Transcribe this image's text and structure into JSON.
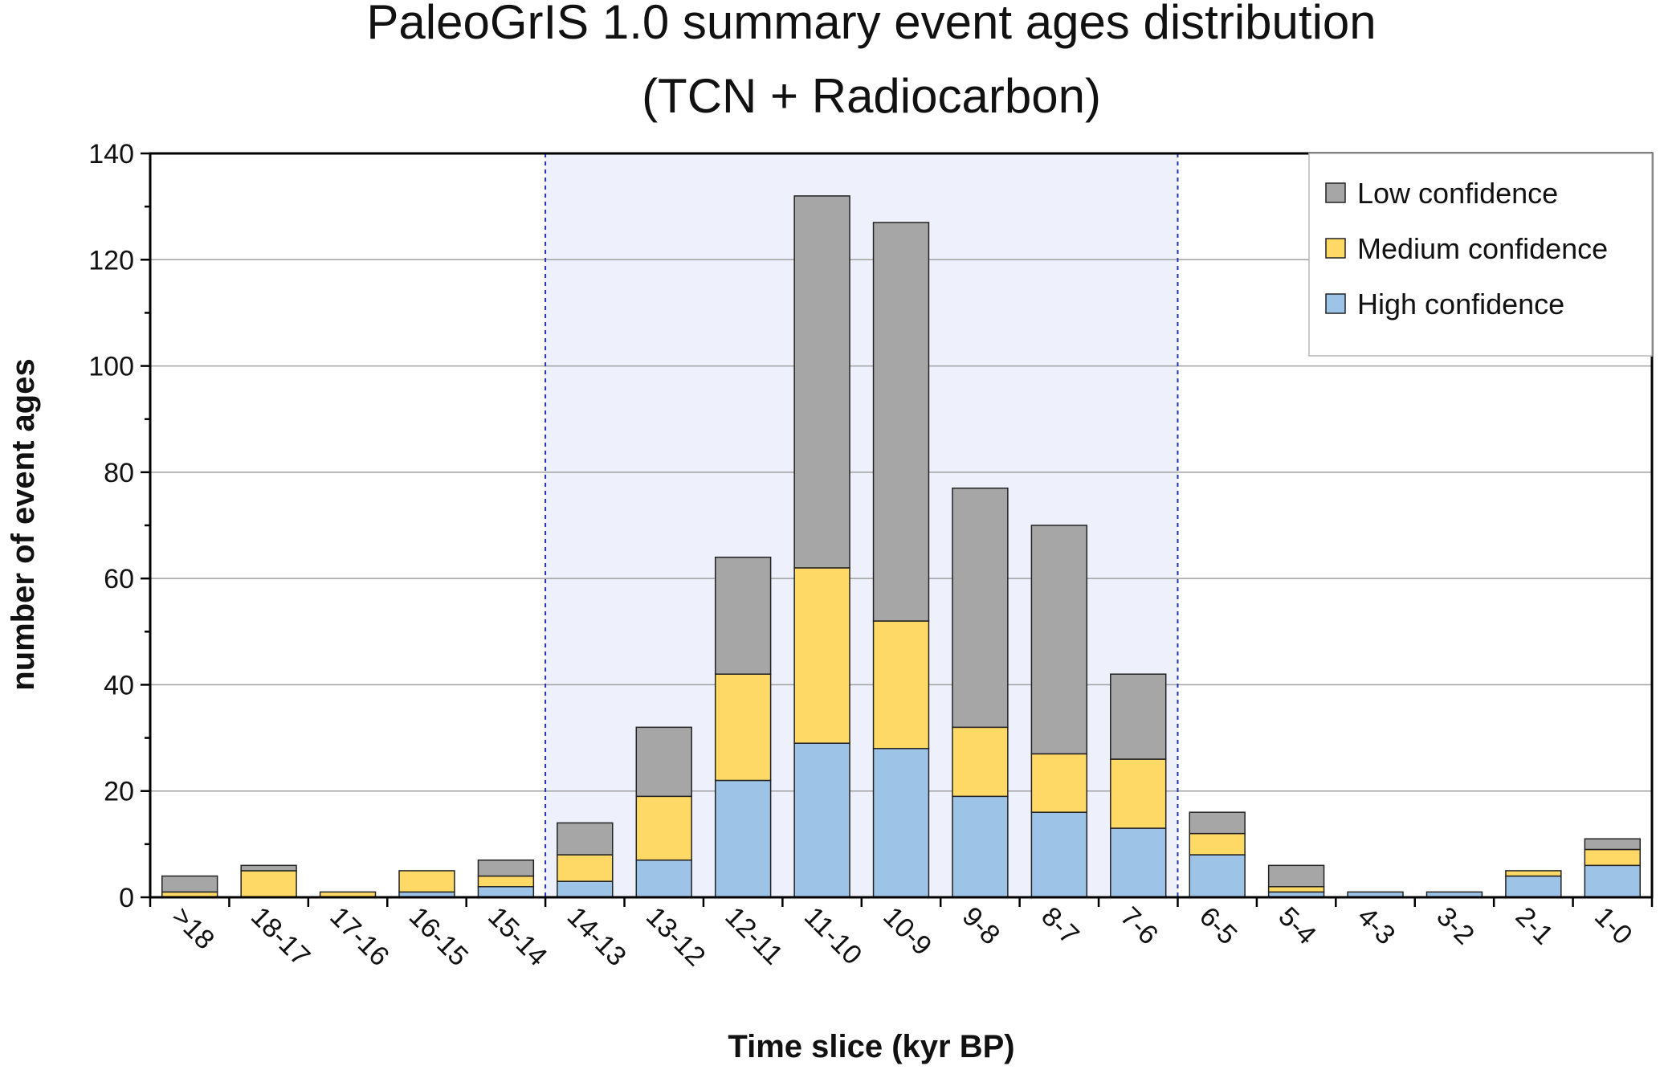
{
  "chart_data": {
    "type": "bar",
    "stacked": true,
    "title": "PaleoGrIS 1.0 summary event ages distribution",
    "subtitle": "(TCN + Radiocarbon)",
    "xlabel": "Time slice (kyr BP)",
    "ylabel": "number of event ages",
    "ylim": [
      0,
      140
    ],
    "yticks": [
      "0",
      "20",
      "40",
      "60",
      "80",
      "100",
      "120",
      "140"
    ],
    "grid": true,
    "legend_position": "top-right",
    "categories": [
      ">18",
      "18-17",
      "17-16",
      "16-15",
      "15-14",
      "14-13",
      "13-12",
      "12-11",
      "11-10",
      "10-9",
      "9-8",
      "8-7",
      "7-6",
      "6-5",
      "5-4",
      "4-3",
      "3-2",
      "2-1",
      "1-0"
    ],
    "highlight_range": {
      "from": "14-13",
      "to": "7-6"
    },
    "series": [
      {
        "name": "High confidence",
        "color": "#9dc3e6",
        "values": [
          0,
          0,
          0,
          1,
          2,
          3,
          7,
          22,
          29,
          28,
          19,
          16,
          13,
          8,
          1,
          1,
          1,
          4,
          6
        ]
      },
      {
        "name": "Medium confidence",
        "color": "#ffd966",
        "values": [
          1,
          5,
          1,
          4,
          2,
          5,
          12,
          20,
          33,
          24,
          13,
          11,
          13,
          4,
          1,
          0,
          0,
          1,
          3
        ]
      },
      {
        "name": "Low confidence",
        "color": "#a6a6a6",
        "values": [
          3,
          1,
          0,
          0,
          3,
          6,
          13,
          22,
          70,
          75,
          45,
          43,
          16,
          4,
          4,
          0,
          0,
          0,
          2
        ]
      }
    ],
    "legend_order": [
      "Low confidence",
      "Medium confidence",
      "High confidence"
    ],
    "colors": {
      "highlight": "#eef0fb",
      "divider": "#2233bb",
      "grid": "#a0a0a0",
      "bar_edge": "#222222"
    }
  }
}
